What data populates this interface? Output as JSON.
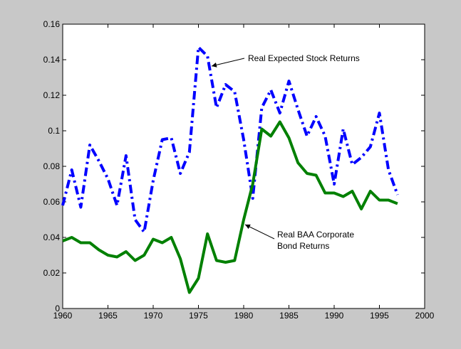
{
  "chart_data": {
    "type": "line",
    "x": [
      1960,
      1961,
      1962,
      1963,
      1964,
      1965,
      1966,
      1967,
      1968,
      1969,
      1970,
      1971,
      1972,
      1973,
      1974,
      1975,
      1976,
      1977,
      1978,
      1979,
      1980,
      1981,
      1982,
      1983,
      1984,
      1985,
      1986,
      1987,
      1988,
      1989,
      1990,
      1991,
      1992,
      1993,
      1994,
      1995,
      1996,
      1997
    ],
    "series": [
      {
        "color": "#0000ff",
        "style": "dash-dot",
        "values": [
          0.058,
          0.078,
          0.057,
          0.092,
          0.083,
          0.073,
          0.058,
          0.086,
          0.05,
          0.043,
          0.072,
          0.095,
          0.096,
          0.076,
          0.088,
          0.147,
          0.142,
          0.113,
          0.126,
          0.122,
          0.095,
          0.062,
          0.113,
          0.123,
          0.11,
          0.128,
          0.112,
          0.097,
          0.108,
          0.097,
          0.07,
          0.101,
          0.081,
          0.085,
          0.091,
          0.11,
          0.078,
          0.064
        ]
      },
      {
        "color": "#008000",
        "style": "solid",
        "values": [
          0.038,
          0.04,
          0.037,
          0.037,
          0.033,
          0.03,
          0.029,
          0.032,
          0.027,
          0.03,
          0.039,
          0.037,
          0.04,
          0.028,
          0.009,
          0.017,
          0.042,
          0.027,
          0.026,
          0.027,
          0.05,
          0.07,
          0.101,
          0.097,
          0.105,
          0.096,
          0.082,
          0.076,
          0.075,
          0.065,
          0.065,
          0.063,
          0.066,
          0.056,
          0.066,
          0.061,
          0.061,
          0.059
        ]
      }
    ],
    "annotations": [
      {
        "lines": [
          "Real Expected Stock Returns"
        ]
      },
      {
        "lines": [
          "Real BAA Corporate",
          "Bond Returns"
        ]
      }
    ],
    "xlim": [
      1960,
      2000
    ],
    "xticks": [
      1960,
      1965,
      1970,
      1975,
      1980,
      1985,
      1990,
      1995,
      2000
    ],
    "ylim": [
      0,
      0.16
    ],
    "yticks": [
      0,
      0.02,
      0.04,
      0.06,
      0.08,
      0.1,
      0.12,
      0.14,
      0.16
    ],
    "grid": false
  }
}
